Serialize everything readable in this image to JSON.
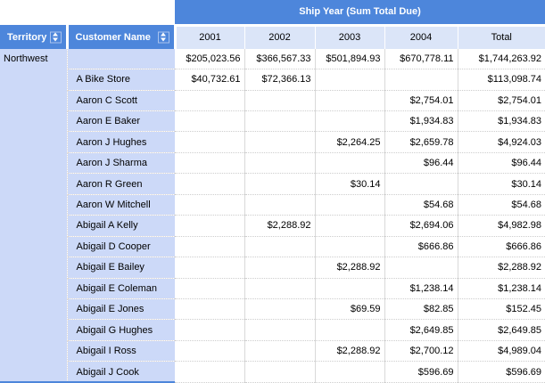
{
  "banner": {
    "title": "Ship Year (Sum Total Due)"
  },
  "headers": {
    "territory": "Territory",
    "customer": "Customer Name",
    "years": [
      "2001",
      "2002",
      "2003",
      "2004"
    ],
    "total": "Total"
  },
  "icons": {
    "sort": "sort-up-down-arrows"
  },
  "colors": {
    "header_blue": "#4d86db",
    "year_header_bg": "#dbe5f8",
    "name_cell_bg": "#ccd9f8",
    "gridline": "#d9d9d9"
  },
  "table": {
    "territory": "Northwest",
    "rows": [
      {
        "customer": "",
        "values": [
          "$205,023.56",
          "$366,567.33",
          "$501,894.93",
          "$670,778.11",
          "$1,744,263.92"
        ]
      },
      {
        "customer": "A Bike Store",
        "values": [
          "$40,732.61",
          "$72,366.13",
          "",
          "",
          "$113,098.74"
        ]
      },
      {
        "customer": "Aaron C Scott",
        "values": [
          "",
          "",
          "",
          "$2,754.01",
          "$2,754.01"
        ]
      },
      {
        "customer": "Aaron E Baker",
        "values": [
          "",
          "",
          "",
          "$1,934.83",
          "$1,934.83"
        ]
      },
      {
        "customer": "Aaron J Hughes",
        "values": [
          "",
          "",
          "$2,264.25",
          "$2,659.78",
          "$4,924.03"
        ]
      },
      {
        "customer": "Aaron J Sharma",
        "values": [
          "",
          "",
          "",
          "$96.44",
          "$96.44"
        ]
      },
      {
        "customer": "Aaron R Green",
        "values": [
          "",
          "",
          "$30.14",
          "",
          "$30.14"
        ]
      },
      {
        "customer": "Aaron W Mitchell",
        "values": [
          "",
          "",
          "",
          "$54.68",
          "$54.68"
        ]
      },
      {
        "customer": "Abigail A Kelly",
        "values": [
          "",
          "$2,288.92",
          "",
          "$2,694.06",
          "$4,982.98"
        ]
      },
      {
        "customer": "Abigail D Cooper",
        "values": [
          "",
          "",
          "",
          "$666.86",
          "$666.86"
        ]
      },
      {
        "customer": "Abigail E Bailey",
        "values": [
          "",
          "",
          "$2,288.92",
          "",
          "$2,288.92"
        ]
      },
      {
        "customer": "Abigail E Coleman",
        "values": [
          "",
          "",
          "",
          "$1,238.14",
          "$1,238.14"
        ]
      },
      {
        "customer": "Abigail E Jones",
        "values": [
          "",
          "",
          "$69.59",
          "$82.85",
          "$152.45"
        ]
      },
      {
        "customer": "Abigail G Hughes",
        "values": [
          "",
          "",
          "",
          "$2,649.85",
          "$2,649.85"
        ]
      },
      {
        "customer": "Abigail I Ross",
        "values": [
          "",
          "",
          "$2,288.92",
          "$2,700.12",
          "$4,989.04"
        ]
      },
      {
        "customer": "Abigail J Cook",
        "values": [
          "",
          "",
          "",
          "$596.69",
          "$596.69"
        ]
      }
    ]
  }
}
